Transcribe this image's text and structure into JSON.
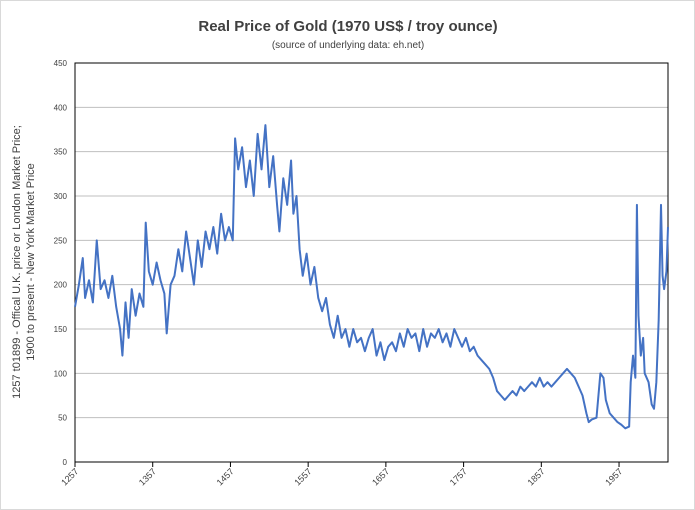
{
  "chart_data": {
    "type": "line",
    "title": "Real Price of Gold (1970 US$ / troy ounce)",
    "subtitle": "(source of underlying data: eh.net)",
    "y_label_lines": [
      "1257 t01899 - Offical U.K. price or London Market Price;",
      "1900 to present - New York Market Price"
    ],
    "x": [
      1257,
      1262,
      1267,
      1270,
      1275,
      1280,
      1285,
      1290,
      1295,
      1300,
      1305,
      1310,
      1315,
      1318,
      1322,
      1326,
      1330,
      1335,
      1340,
      1345,
      1348,
      1352,
      1357,
      1362,
      1367,
      1372,
      1375,
      1380,
      1385,
      1390,
      1395,
      1400,
      1405,
      1410,
      1415,
      1420,
      1425,
      1430,
      1435,
      1440,
      1445,
      1450,
      1455,
      1460,
      1463,
      1467,
      1472,
      1477,
      1482,
      1487,
      1492,
      1497,
      1502,
      1507,
      1512,
      1517,
      1520,
      1525,
      1530,
      1535,
      1538,
      1542,
      1546,
      1550,
      1555,
      1560,
      1565,
      1570,
      1575,
      1580,
      1585,
      1590,
      1595,
      1600,
      1605,
      1610,
      1615,
      1620,
      1625,
      1630,
      1635,
      1640,
      1645,
      1650,
      1655,
      1660,
      1665,
      1670,
      1675,
      1680,
      1685,
      1690,
      1695,
      1700,
      1705,
      1710,
      1715,
      1720,
      1725,
      1730,
      1735,
      1740,
      1745,
      1750,
      1755,
      1760,
      1765,
      1770,
      1775,
      1780,
      1785,
      1790,
      1795,
      1800,
      1805,
      1810,
      1815,
      1820,
      1825,
      1830,
      1835,
      1840,
      1845,
      1850,
      1855,
      1860,
      1865,
      1870,
      1875,
      1880,
      1885,
      1890,
      1895,
      1900,
      1905,
      1910,
      1915,
      1918,
      1922,
      1928,
      1933,
      1937,
      1940,
      1945,
      1950,
      1955,
      1960,
      1965,
      1970,
      1972,
      1975,
      1978,
      1980,
      1982,
      1985,
      1988,
      1990,
      1995,
      1999,
      2002,
      2005,
      2008,
      2011,
      2013,
      2015,
      2018,
      2020
    ],
    "series": [
      {
        "name": "Real Price of Gold",
        "color": "#4472c4",
        "values": [
          175,
          200,
          230,
          185,
          205,
          180,
          250,
          195,
          205,
          185,
          210,
          175,
          150,
          120,
          180,
          140,
          195,
          165,
          190,
          175,
          270,
          215,
          200,
          225,
          205,
          190,
          145,
          200,
          210,
          240,
          215,
          260,
          230,
          200,
          250,
          220,
          260,
          240,
          265,
          235,
          280,
          250,
          265,
          250,
          365,
          330,
          355,
          310,
          340,
          300,
          370,
          330,
          380,
          310,
          345,
          290,
          260,
          320,
          290,
          340,
          280,
          300,
          240,
          210,
          235,
          200,
          220,
          185,
          170,
          185,
          155,
          140,
          165,
          140,
          150,
          130,
          150,
          135,
          140,
          125,
          140,
          150,
          120,
          135,
          115,
          130,
          135,
          125,
          145,
          130,
          150,
          140,
          145,
          125,
          150,
          130,
          145,
          140,
          150,
          135,
          145,
          130,
          150,
          140,
          130,
          140,
          125,
          130,
          120,
          115,
          110,
          105,
          95,
          80,
          75,
          70,
          75,
          80,
          75,
          85,
          80,
          85,
          90,
          85,
          95,
          85,
          90,
          85,
          90,
          95,
          100,
          105,
          100,
          95,
          85,
          75,
          55,
          45,
          48,
          50,
          100,
          95,
          70,
          55,
          50,
          45,
          42,
          38,
          40,
          90,
          120,
          95,
          290,
          165,
          120,
          140,
          100,
          90,
          65,
          60,
          90,
          160,
          290,
          210,
          195,
          215,
          265
        ]
      }
    ],
    "xlim": [
      1257,
      2020
    ],
    "xticks": [
      1257,
      1357,
      1457,
      1557,
      1657,
      1757,
      1857,
      1957
    ],
    "ylim": [
      0,
      450
    ],
    "yticks": [
      0,
      50,
      100,
      150,
      200,
      250,
      300,
      350,
      400,
      450
    ],
    "grid": true
  }
}
